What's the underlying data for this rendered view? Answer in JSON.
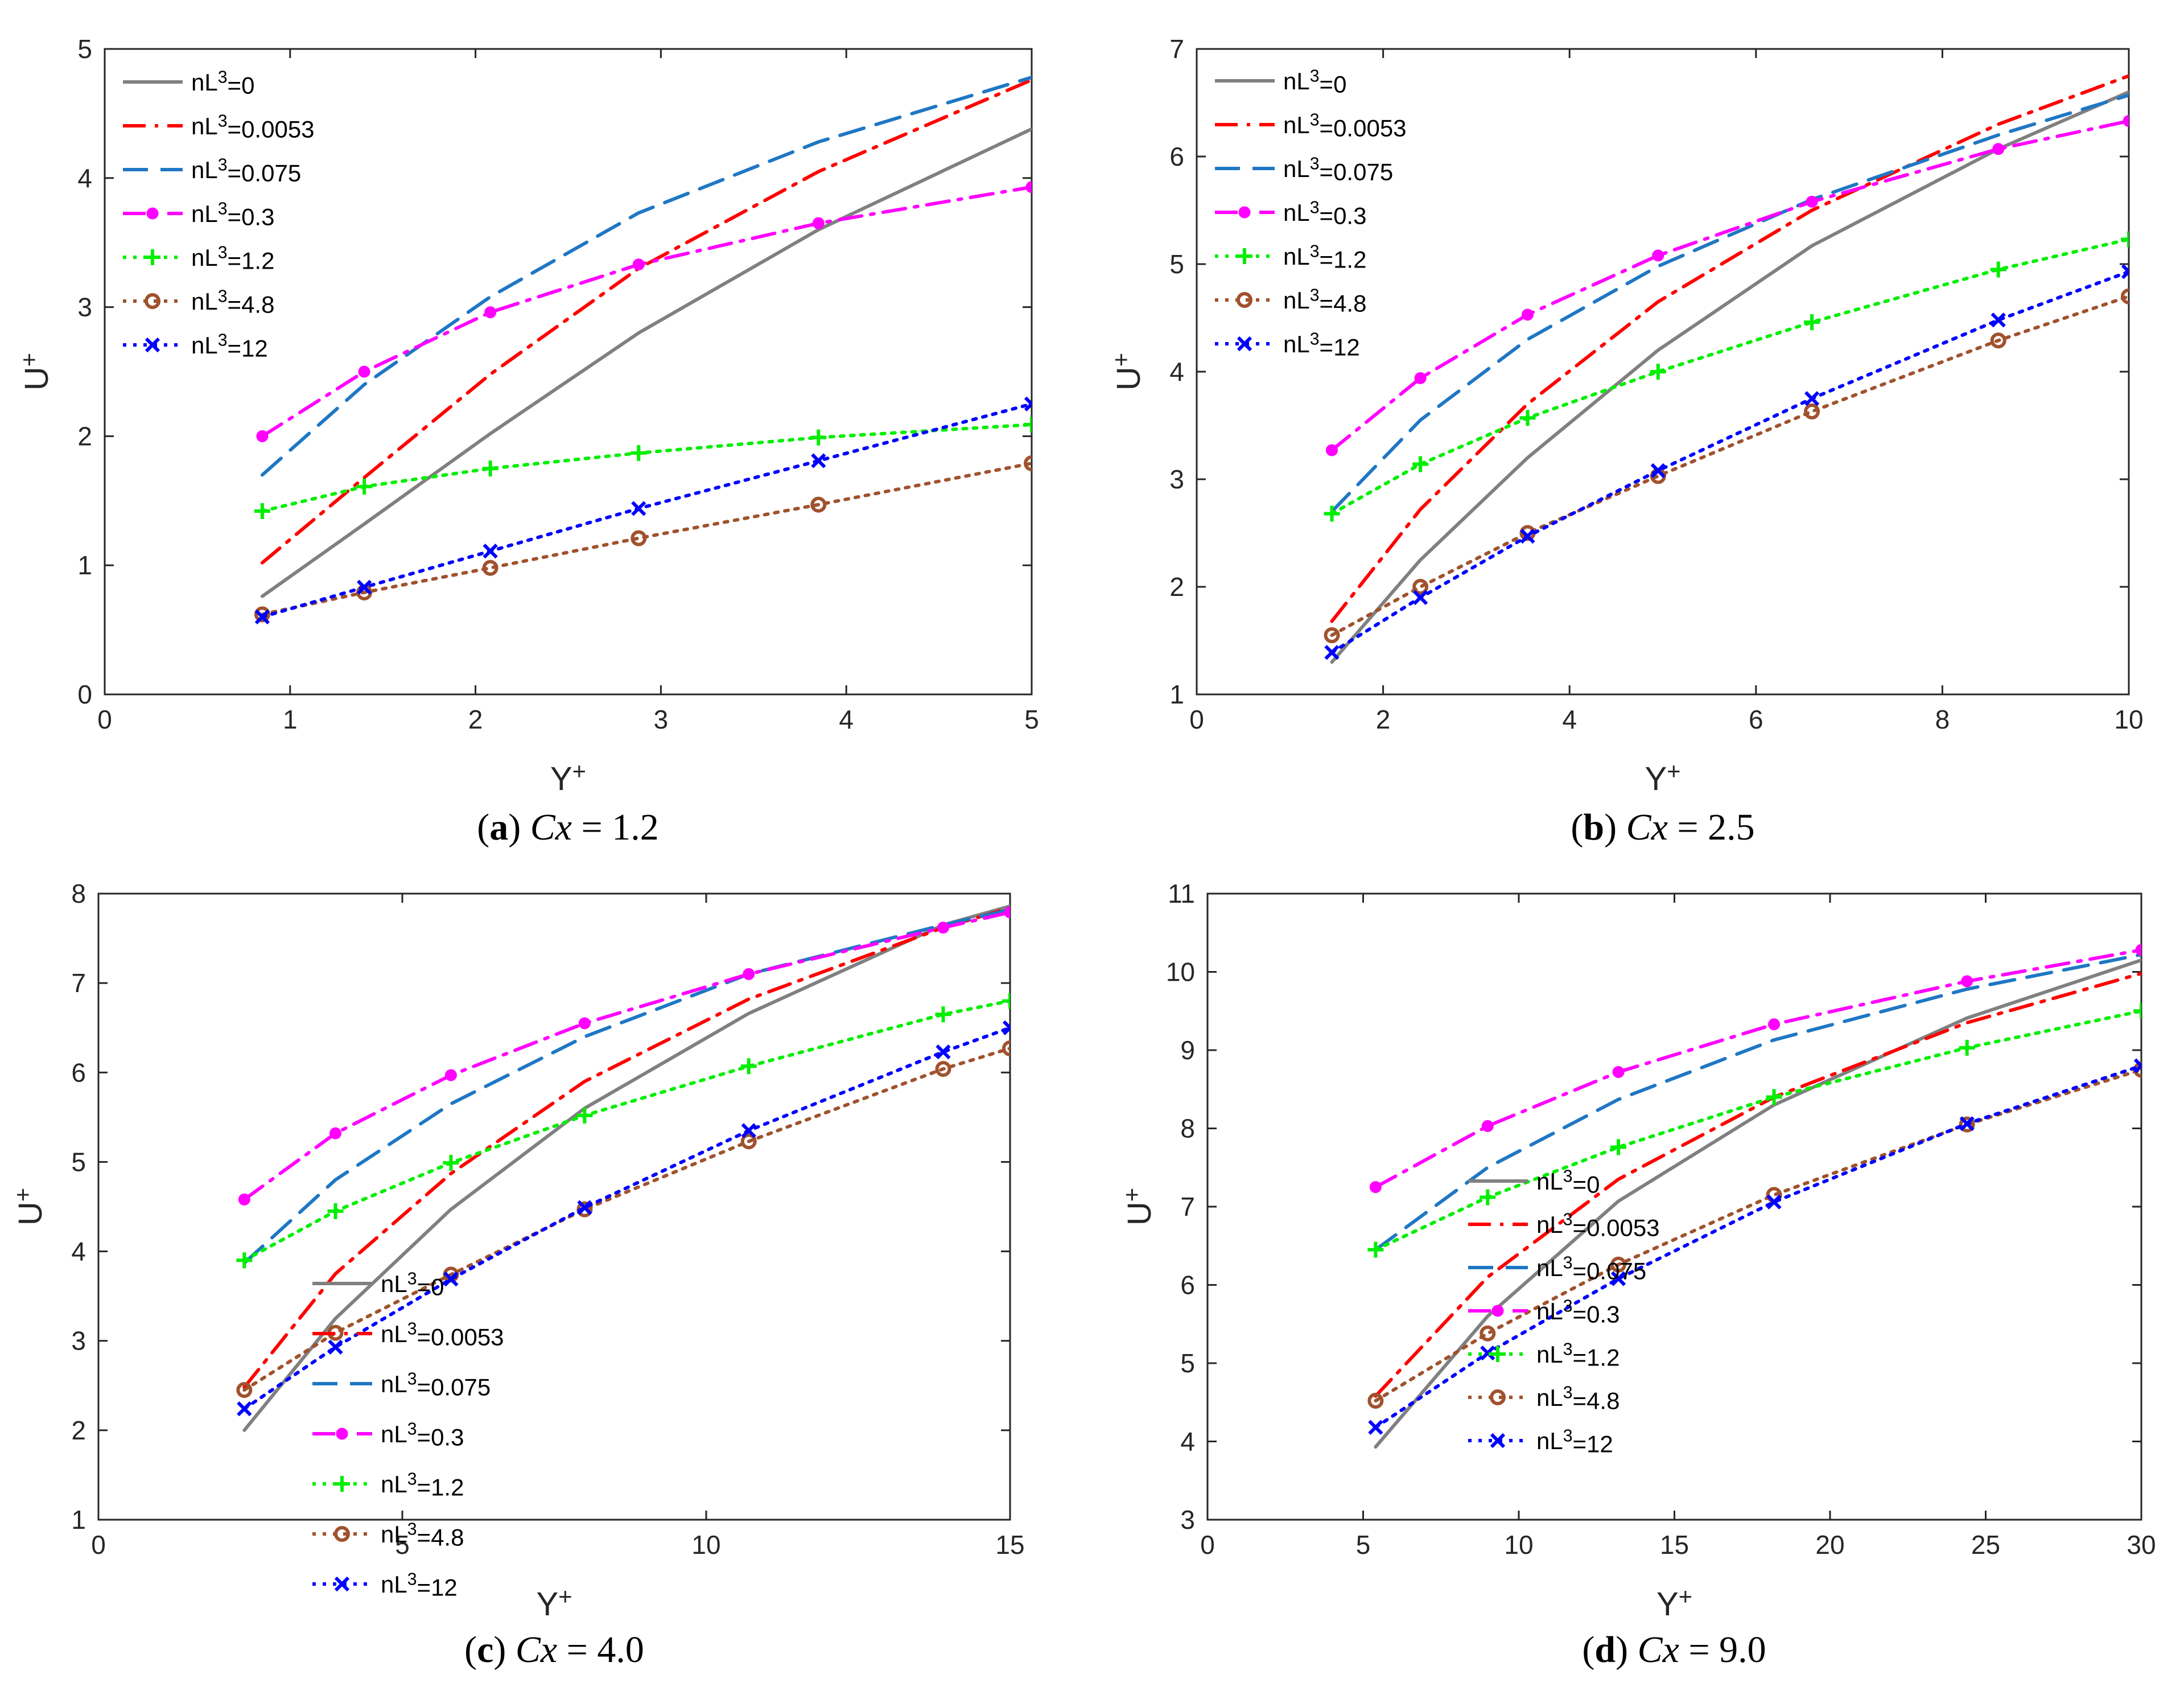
{
  "series_styles": [
    {
      "color": "#808080",
      "dash": "",
      "marker": "none"
    },
    {
      "color": "#ff0000",
      "dash": "dashdot",
      "marker": "none"
    },
    {
      "color": "#1f77c4",
      "dash": "dashed",
      "marker": "none"
    },
    {
      "color": "#ff00ff",
      "dash": "dashdot",
      "marker": "dot"
    },
    {
      "color": "#00ee00",
      "dash": "dotted",
      "marker": "plus"
    },
    {
      "color": "#a0522d",
      "dash": "dotted",
      "marker": "circle"
    },
    {
      "color": "#0000ff",
      "dash": "dotted",
      "marker": "x"
    }
  ],
  "chart_data": [
    {
      "type": "line",
      "panel": "a",
      "caption": {
        "label": "a",
        "var": "Cx",
        "value": "= 1.2"
      },
      "xlabel": {
        "base": "Y",
        "sup": "+"
      },
      "ylabel": {
        "base": "U",
        "sup": "+"
      },
      "xlim": [
        0,
        5
      ],
      "ylim": [
        0,
        5
      ],
      "xticks": [
        "0",
        "1",
        "2",
        "3",
        "4",
        "5"
      ],
      "yticks": [
        "0",
        "1",
        "2",
        "3",
        "4",
        "5"
      ],
      "legend_position": "top-left",
      "x": [
        0.85,
        1.4,
        2.08,
        2.88,
        3.85,
        5.0
      ],
      "series": [
        {
          "name_base": "nL",
          "name_sup": "3",
          "name_rest": "=0",
          "values": [
            0.76,
            1.32,
            2.02,
            2.8,
            3.6,
            4.38
          ]
        },
        {
          "name_base": "nL",
          "name_sup": "3",
          "name_rest": "=0.0053",
          "values": [
            1.02,
            1.68,
            2.48,
            3.3,
            4.05,
            4.76
          ]
        },
        {
          "name_base": "nL",
          "name_sup": "3",
          "name_rest": "=0.075",
          "values": [
            1.7,
            2.4,
            3.08,
            3.73,
            4.28,
            4.78
          ]
        },
        {
          "name_base": "nL",
          "name_sup": "3",
          "name_rest": "=0.3",
          "values": [
            2.0,
            2.5,
            2.96,
            3.33,
            3.65,
            3.93
          ]
        },
        {
          "name_base": "nL",
          "name_sup": "3",
          "name_rest": "=1.2",
          "values": [
            1.42,
            1.61,
            1.75,
            1.87,
            1.99,
            2.09
          ]
        },
        {
          "name_base": "nL",
          "name_sup": "3",
          "name_rest": "=4.8",
          "values": [
            0.62,
            0.79,
            0.98,
            1.21,
            1.47,
            1.79
          ]
        },
        {
          "name_base": "nL",
          "name_sup": "3",
          "name_rest": "=12",
          "values": [
            0.6,
            0.83,
            1.11,
            1.44,
            1.81,
            2.25
          ]
        }
      ]
    },
    {
      "type": "line",
      "panel": "b",
      "caption": {
        "label": "b",
        "var": "Cx",
        "value": "= 2.5"
      },
      "xlabel": {
        "base": "Y",
        "sup": "+"
      },
      "ylabel": {
        "base": "U",
        "sup": "+"
      },
      "xlim": [
        0,
        10
      ],
      "ylim": [
        1,
        7
      ],
      "xticks": [
        "0",
        "2",
        "4",
        "6",
        "8",
        "10"
      ],
      "yticks": [
        "1",
        "2",
        "3",
        "4",
        "5",
        "6",
        "7"
      ],
      "legend_position": "top-left",
      "x": [
        1.45,
        2.4,
        3.55,
        4.95,
        6.6,
        8.6,
        10.0
      ],
      "series": [
        {
          "name_base": "nL",
          "name_sup": "3",
          "name_rest": "=0",
          "values": [
            1.3,
            2.25,
            3.2,
            4.2,
            5.17,
            6.07,
            6.6
          ]
        },
        {
          "name_base": "nL",
          "name_sup": "3",
          "name_rest": "=0.0053",
          "values": [
            1.68,
            2.72,
            3.7,
            4.65,
            5.5,
            6.3,
            6.75
          ]
        },
        {
          "name_base": "nL",
          "name_sup": "3",
          "name_rest": "=0.075",
          "values": [
            2.7,
            3.55,
            4.3,
            4.98,
            5.6,
            6.2,
            6.57
          ]
        },
        {
          "name_base": "nL",
          "name_sup": "3",
          "name_rest": "=0.3",
          "values": [
            3.27,
            3.94,
            4.53,
            5.08,
            5.58,
            6.07,
            6.33
          ]
        },
        {
          "name_base": "nL",
          "name_sup": "3",
          "name_rest": "=1.2",
          "values": [
            2.68,
            3.14,
            3.57,
            4.0,
            4.46,
            4.95,
            5.23
          ]
        },
        {
          "name_base": "nL",
          "name_sup": "3",
          "name_rest": "=4.8",
          "values": [
            1.55,
            2.0,
            2.5,
            3.03,
            3.63,
            4.29,
            4.7
          ]
        },
        {
          "name_base": "nL",
          "name_sup": "3",
          "name_rest": "=12",
          "values": [
            1.39,
            1.9,
            2.47,
            3.08,
            3.75,
            4.48,
            4.93
          ]
        }
      ]
    },
    {
      "type": "line",
      "panel": "c",
      "caption": {
        "label": "c",
        "var": "Cx",
        "value": "= 4.0"
      },
      "xlabel": {
        "base": "Y",
        "sup": "+"
      },
      "ylabel": {
        "base": "U",
        "sup": "+"
      },
      "xlim": [
        0,
        15
      ],
      "ylim": [
        1,
        8
      ],
      "xticks": [
        "0",
        "5",
        "10",
        "15"
      ],
      "yticks": [
        "1",
        "2",
        "3",
        "4",
        "5",
        "6",
        "7",
        "8"
      ],
      "legend_position": "bottom-right",
      "x": [
        2.4,
        3.9,
        5.8,
        8.0,
        10.7,
        13.9,
        15.0
      ],
      "series": [
        {
          "name_base": "nL",
          "name_sup": "3",
          "name_rest": "=0",
          "values": [
            2.0,
            3.25,
            4.47,
            5.6,
            6.66,
            7.65,
            7.86
          ]
        },
        {
          "name_base": "nL",
          "name_sup": "3",
          "name_rest": "=0.0053",
          "values": [
            2.48,
            3.75,
            4.87,
            5.9,
            6.82,
            7.62,
            7.84
          ]
        },
        {
          "name_base": "nL",
          "name_sup": "3",
          "name_rest": "=0.075",
          "values": [
            3.87,
            4.8,
            5.65,
            6.4,
            7.1,
            7.65,
            7.82
          ]
        },
        {
          "name_base": "nL",
          "name_sup": "3",
          "name_rest": "=0.3",
          "values": [
            4.58,
            5.32,
            5.97,
            6.55,
            7.1,
            7.62,
            7.79
          ]
        },
        {
          "name_base": "nL",
          "name_sup": "3",
          "name_rest": "=1.2",
          "values": [
            3.9,
            4.45,
            4.99,
            5.52,
            6.07,
            6.65,
            6.8
          ]
        },
        {
          "name_base": "nL",
          "name_sup": "3",
          "name_rest": "=4.8",
          "values": [
            2.45,
            3.09,
            3.74,
            4.47,
            5.23,
            6.04,
            6.27
          ]
        },
        {
          "name_base": "nL",
          "name_sup": "3",
          "name_rest": "=12",
          "values": [
            2.24,
            2.93,
            3.69,
            4.49,
            5.35,
            6.23,
            6.5
          ]
        }
      ]
    },
    {
      "type": "line",
      "panel": "d",
      "caption": {
        "label": "d",
        "var": "Cx",
        "value": "= 9.0"
      },
      "xlabel": {
        "base": "Y",
        "sup": "+"
      },
      "ylabel": {
        "base": "U",
        "sup": "+"
      },
      "xlim": [
        0,
        30
      ],
      "ylim": [
        3,
        11
      ],
      "xticks": [
        "0",
        "5",
        "10",
        "15",
        "20",
        "25",
        "30"
      ],
      "yticks": [
        "3",
        "4",
        "5",
        "6",
        "7",
        "8",
        "9",
        "10",
        "11"
      ],
      "legend_position": "bottom-right",
      "x": [
        5.4,
        9.0,
        13.2,
        18.2,
        24.4,
        30.0
      ],
      "series": [
        {
          "name_base": "nL",
          "name_sup": "3",
          "name_rest": "=0",
          "values": [
            3.93,
            5.6,
            7.07,
            8.3,
            9.41,
            10.15
          ]
        },
        {
          "name_base": "nL",
          "name_sup": "3",
          "name_rest": "=0.0053",
          "values": [
            4.58,
            6.1,
            7.35,
            8.4,
            9.35,
            9.98
          ]
        },
        {
          "name_base": "nL",
          "name_sup": "3",
          "name_rest": "=0.075",
          "values": [
            6.45,
            7.5,
            8.37,
            9.13,
            9.78,
            10.22
          ]
        },
        {
          "name_base": "nL",
          "name_sup": "3",
          "name_rest": "=0.3",
          "values": [
            7.25,
            8.03,
            8.72,
            9.33,
            9.88,
            10.28
          ]
        },
        {
          "name_base": "nL",
          "name_sup": "3",
          "name_rest": "=1.2",
          "values": [
            6.45,
            7.12,
            7.76,
            8.4,
            9.03,
            9.5
          ]
        },
        {
          "name_base": "nL",
          "name_sup": "3",
          "name_rest": "=4.8",
          "values": [
            4.52,
            5.38,
            6.26,
            7.15,
            8.05,
            8.75
          ]
        },
        {
          "name_base": "nL",
          "name_sup": "3",
          "name_rest": "=12",
          "values": [
            4.18,
            5.13,
            6.08,
            7.06,
            8.06,
            8.8
          ]
        }
      ]
    }
  ]
}
